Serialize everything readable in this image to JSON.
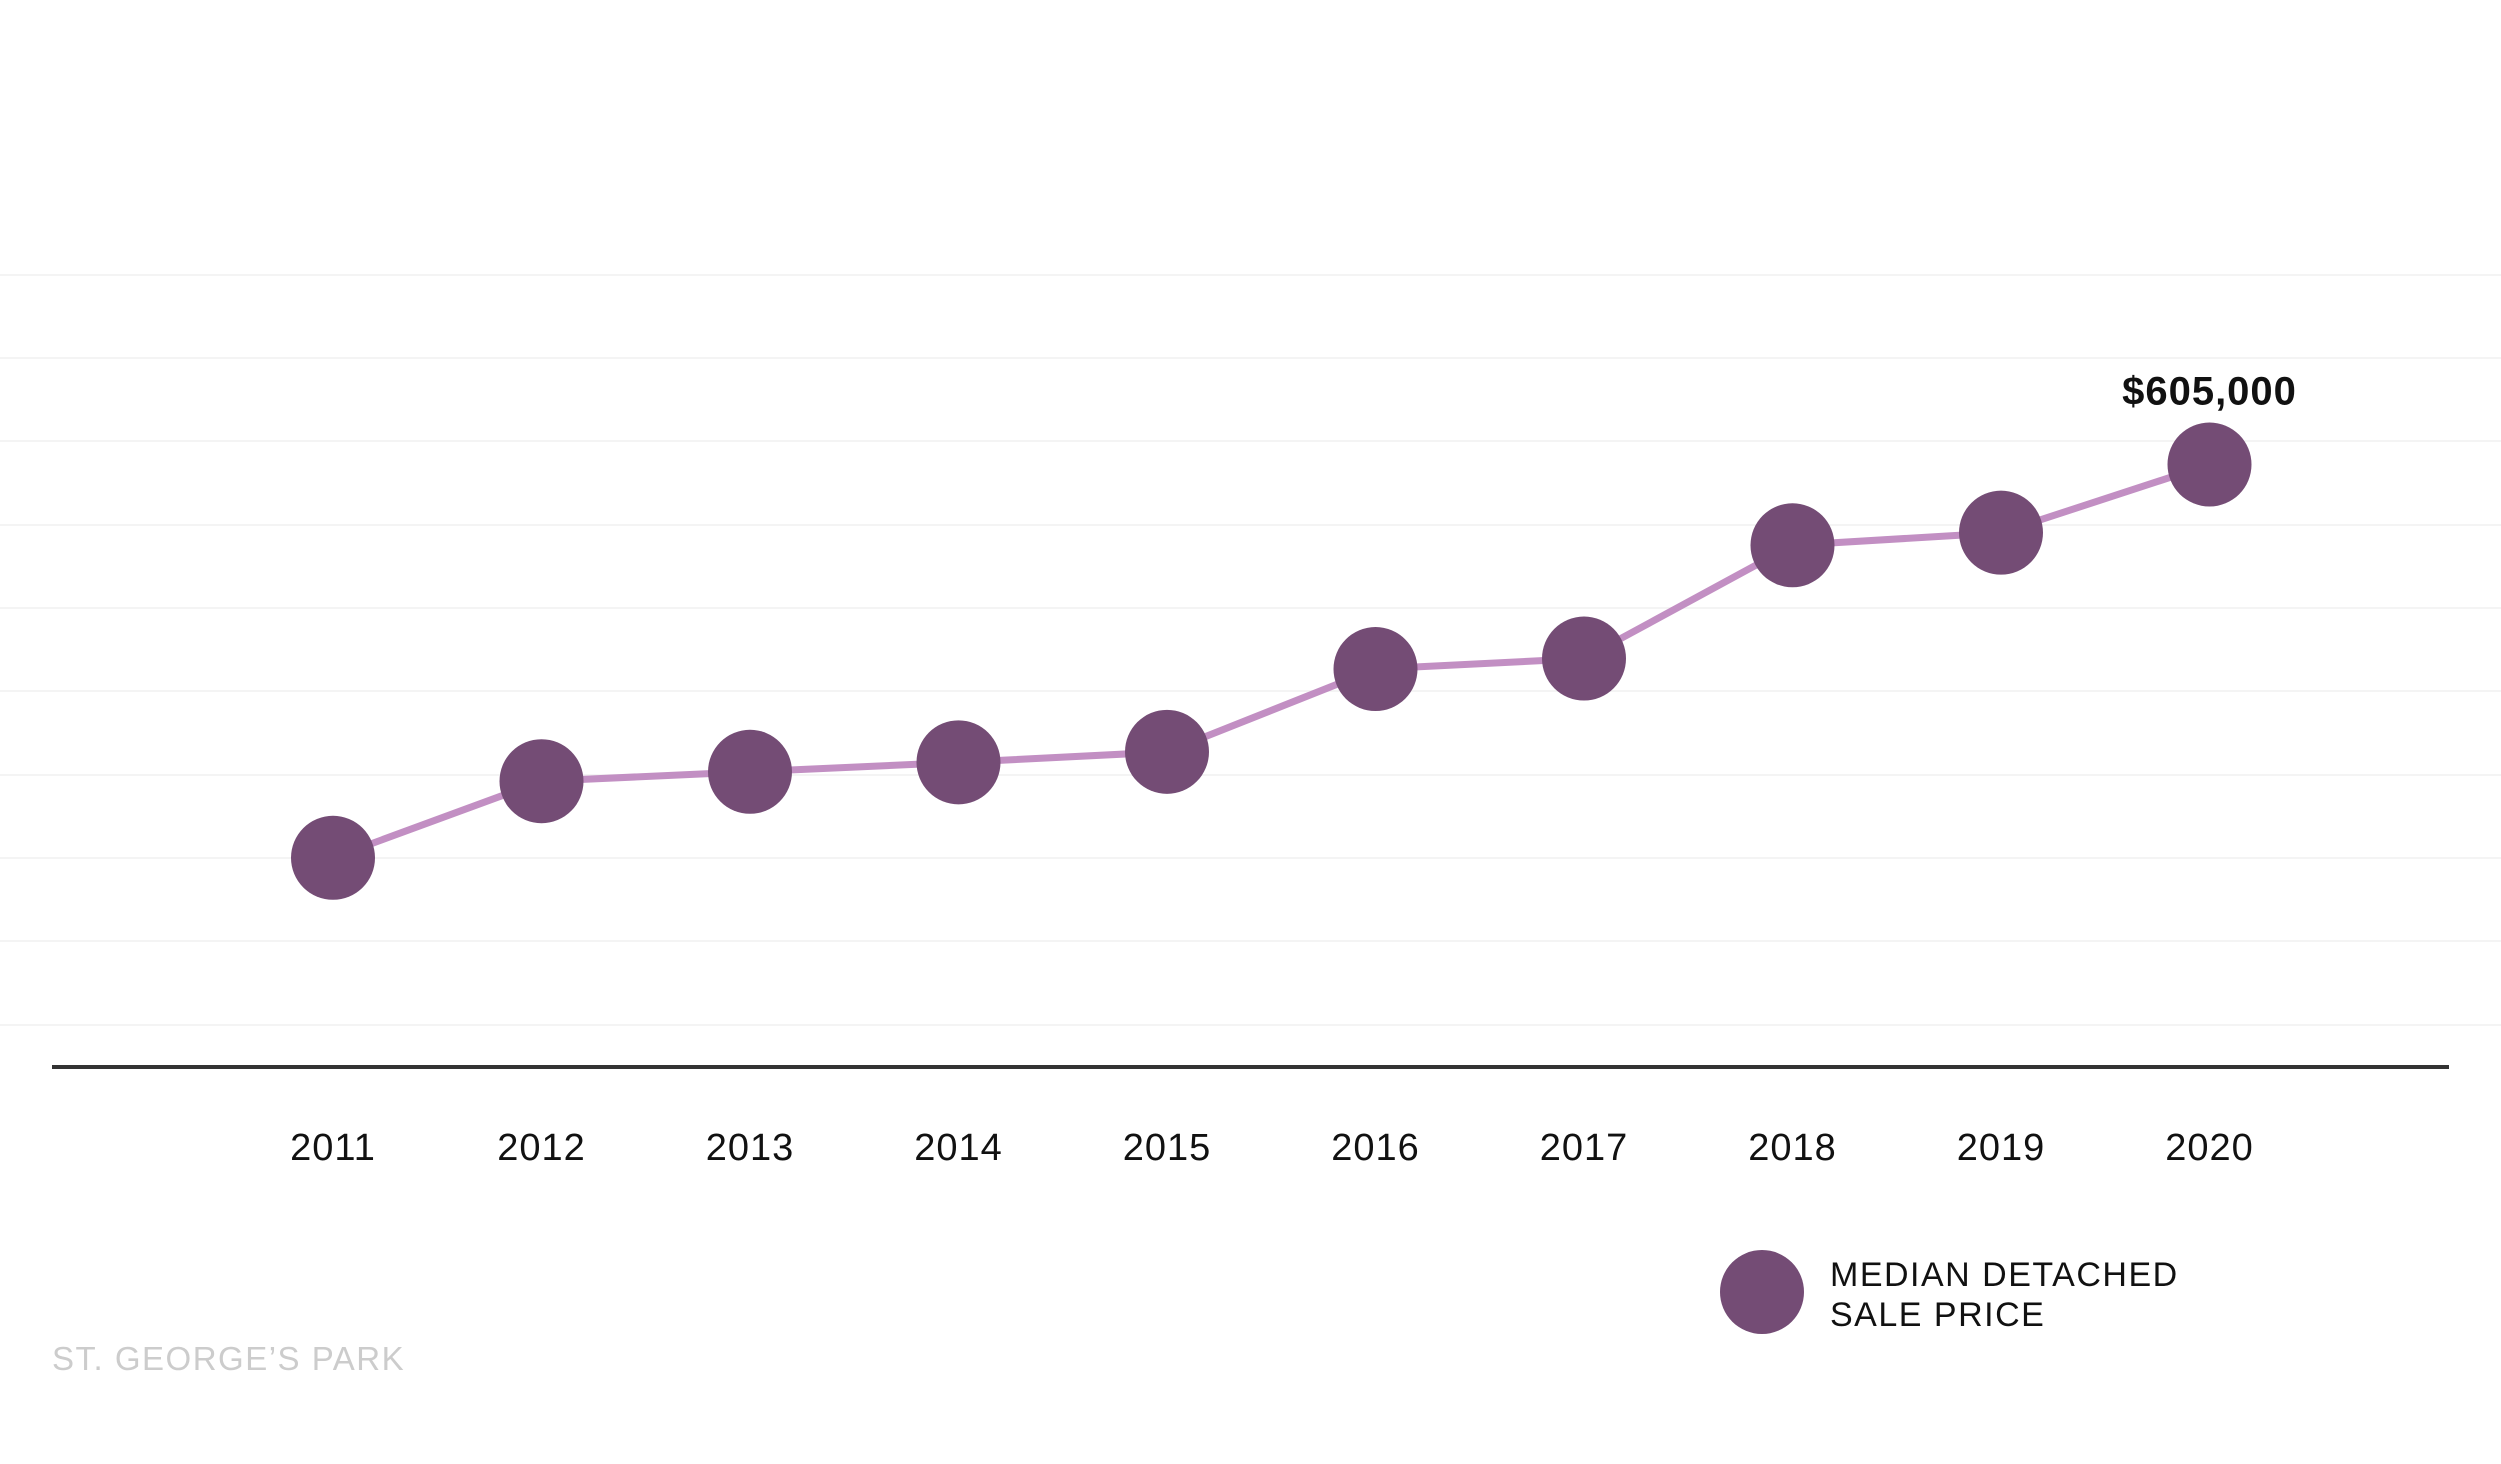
{
  "chart_data": {
    "type": "line",
    "x": [
      "2011",
      "2012",
      "2013",
      "2014",
      "2015",
      "2016",
      "2017",
      "2018",
      "2019",
      "2020"
    ],
    "series": [
      {
        "name": "MEDIAN DETACHED SALE PRICE",
        "legend_lines": [
          "MEDIAN DETACHED",
          "SALE PRICE"
        ],
        "values": [
          230000,
          303000,
          312000,
          321000,
          331000,
          410000,
          420000,
          528000,
          540000,
          605000
        ],
        "marker_color": "#744c75",
        "line_color": "#c28fc3"
      }
    ],
    "annotations": [
      {
        "x": "2020",
        "text": "$605,000"
      }
    ],
    "ylim": [
      0,
      800000
    ],
    "grid": true,
    "legend_position": "bottom-right",
    "title": "",
    "xlabel": "",
    "ylabel": ""
  },
  "footer": {
    "text": "ST. GEORGE’S PARK"
  },
  "colors": {
    "gridline": "#f4f4f4",
    "axis": "#333333",
    "footer": "#cccccc"
  }
}
